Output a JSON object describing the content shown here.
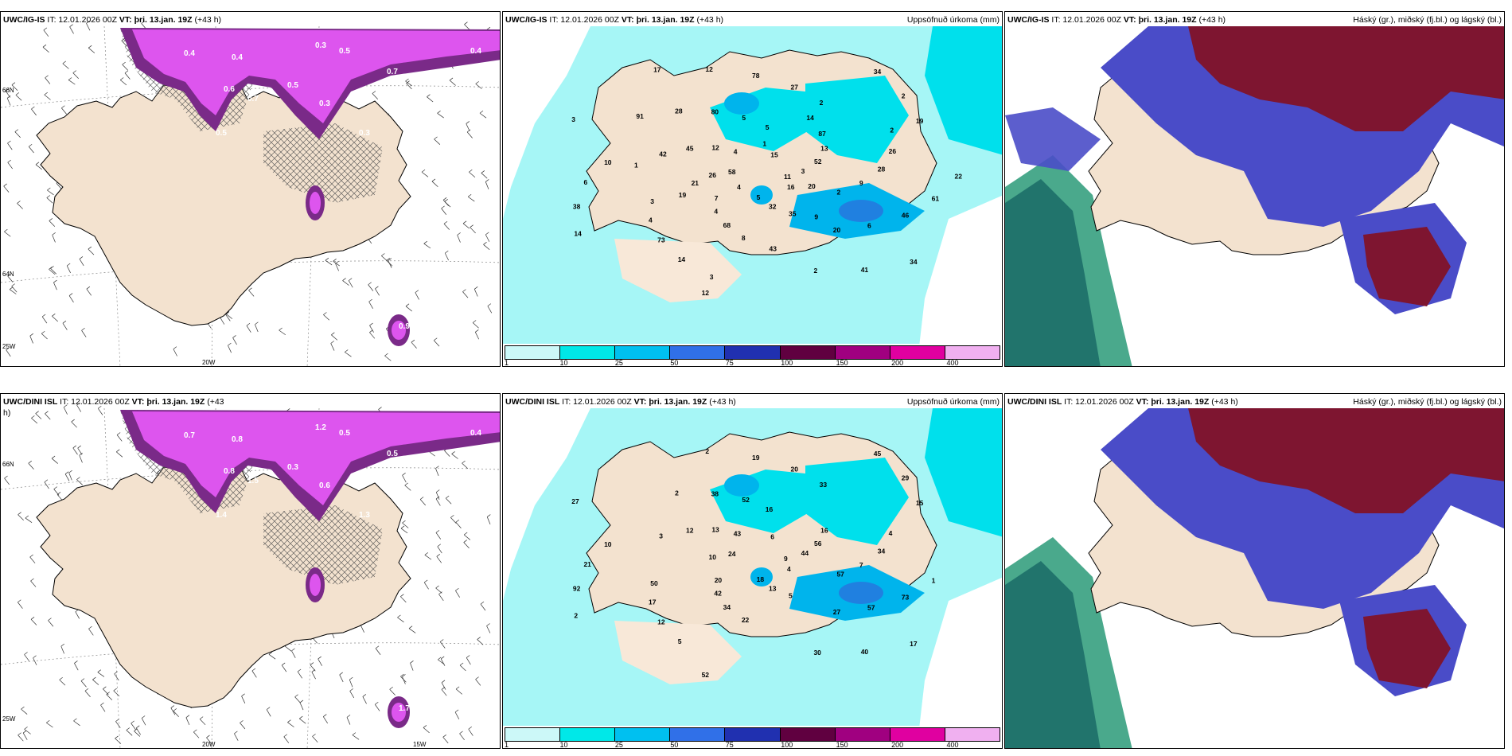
{
  "panels": [
    {
      "model": "UWC/IG-IS",
      "it": "IT: 12.01.2026 00Z",
      "vt": "VT: þri. 13.jan. 19Z",
      "lead": "(+43 h)",
      "right": "",
      "kind": "barb"
    },
    {
      "model": "UWC/IG-IS",
      "it": "IT: 12.01.2026 00Z",
      "vt": "VT: þri. 13.jan. 19Z",
      "lead": "(+43 h)",
      "right": "Uppsöfnuð úrkoma (mm)",
      "kind": "precip"
    },
    {
      "model": "UWC/IG-IS",
      "it": "IT: 12.01.2026 00Z",
      "vt": "VT: þri. 13.jan. 19Z",
      "lead": "(+43 h)",
      "right": "Háský (gr.), miðský (fj.bl.) og lágský (bl.)",
      "kind": "cloud"
    },
    {
      "model": "UWC/DINI ISL",
      "it": "IT: 12.01.2026 00Z",
      "vt": "VT: þri. 13.jan. 19Z",
      "lead": "(+43",
      "right": "",
      "kind": "barb"
    },
    {
      "model": "UWC/DINI ISL",
      "it": "IT: 12.01.2026 00Z",
      "vt": "VT: þri. 13.jan. 19Z",
      "lead": "(+43 h)",
      "right": "Uppsöfnuð úrkoma (mm)",
      "kind": "precip"
    },
    {
      "model": "UWC/DINI ISL",
      "it": "IT: 12.01.2026 00Z",
      "vt": "VT: þri. 13.jan. 19Z",
      "lead": "(+43 h)",
      "right": "Háský (gr.), miðský (fj.bl.) og lágský (bl.)",
      "kind": "cloud"
    }
  ],
  "lead_cont": "h)",
  "axis_labels": {
    "lat66": "66N",
    "lat64": "64N",
    "lon25": "25W",
    "lon20": "20W",
    "lon15": "15W"
  },
  "legend": {
    "labels": [
      "1",
      "10",
      "25",
      "50",
      "75",
      "100",
      "150",
      "200",
      "400"
    ],
    "colors": [
      "#ccf8f8",
      "#00e8e8",
      "#00c0f0",
      "#3070e8",
      "#2030b0",
      "#600040",
      "#a00080",
      "#e000a0",
      "#f0b0f0"
    ]
  },
  "colors": {
    "land": "#f3e2cf",
    "precip_light": "#a6f6f6",
    "precip_mid": "#00e0ec",
    "precip_heavy": "#00b4ec",
    "magenta": "#dd55ee",
    "purple": "#7a2a88",
    "maroon": "#7e1530",
    "blue": "#4a4cc8",
    "green": "#2a9a78"
  },
  "values": {
    "p0": [
      "0.4",
      "0.4",
      "0.3",
      "0.5",
      "0.6",
      "0.7",
      "0.5",
      "0.3",
      "0.5",
      "0.3",
      "0.9",
      "0.7",
      "0.4"
    ],
    "p1": [
      "11",
      "7",
      "5",
      "20",
      "10",
      "19",
      "12",
      "4",
      "2",
      "3",
      "2",
      "2",
      "3",
      "3",
      "4",
      "5",
      "6",
      "6",
      "2",
      "5",
      "12",
      "9",
      "4",
      "27",
      "41",
      "58",
      "52",
      "68",
      "80",
      "46",
      "38",
      "34",
      "32",
      "45",
      "28",
      "73",
      "78",
      "34",
      "26",
      "13",
      "8",
      "28",
      "61",
      "14",
      "15",
      "35",
      "42",
      "26",
      "14",
      "12",
      "16",
      "21",
      "87",
      "43",
      "91",
      "22",
      "4",
      "1",
      "9",
      "1",
      "2",
      "3",
      "17",
      "20",
      "19",
      "14"
    ],
    "p3": [
      "0.7",
      "0.8",
      "1.2",
      "0.5",
      "0.8",
      "1.5",
      "0.3",
      "0.6",
      "1.4",
      "1.3",
      "1.7",
      "0.5",
      "0.4"
    ],
    "p4": [
      "9",
      "20",
      "16",
      "27",
      "10",
      "15",
      "52",
      "43",
      "57",
      "50",
      "33",
      "30",
      "27",
      "44",
      "42",
      "52",
      "57",
      "21",
      "29",
      "18",
      "13",
      "7",
      "17",
      "20",
      "40",
      "24",
      "56",
      "34",
      "38",
      "73",
      "92",
      "45",
      "13",
      "12",
      "34",
      "12",
      "19",
      "17",
      "10",
      "16",
      "22",
      "2",
      "1",
      "2",
      "6",
      "5",
      "3",
      "4",
      "5",
      "2",
      "4"
    ]
  }
}
